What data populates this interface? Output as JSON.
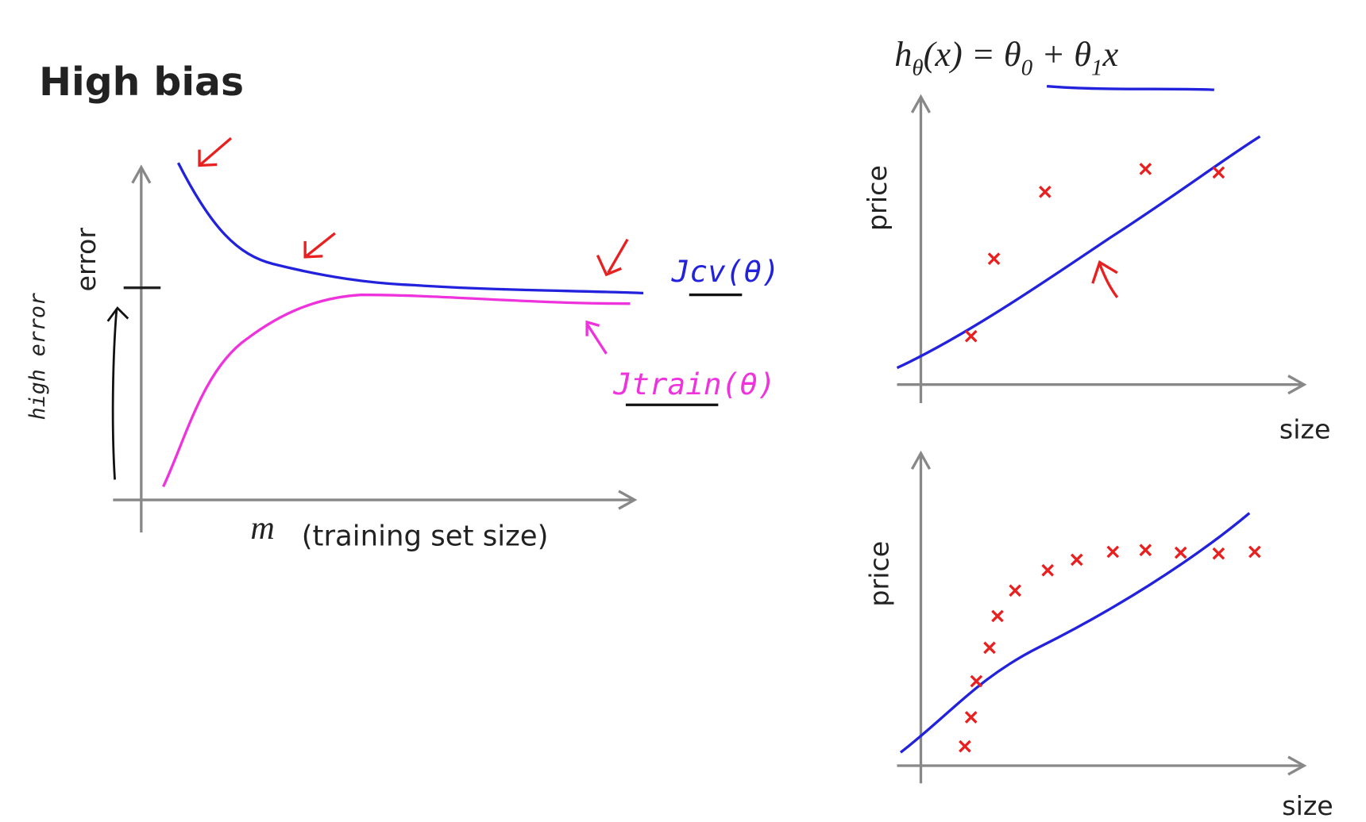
{
  "title": "High bias",
  "learning_curve": {
    "y_label": "error",
    "x_var": "m",
    "x_label": "(training set size)",
    "cv_label": "Jcv(θ)",
    "train_label": "Jtrain(θ)",
    "note": "high error"
  },
  "hypothesis": [
    "h",
    "θ",
    "(x) = θ",
    "0",
    " + θ",
    "1",
    "x"
  ],
  "top_plot": {
    "y_label": "price",
    "x_label": "size"
  },
  "bottom_plot": {
    "y_label": "price",
    "x_label": "size"
  }
}
